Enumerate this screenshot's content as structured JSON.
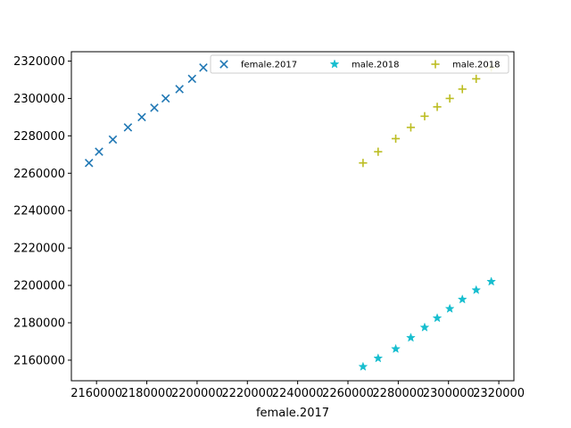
{
  "chart_data": {
    "type": "scatter",
    "title": "",
    "xlabel": "female.2017",
    "ylabel": "",
    "xlim": [
      2150000,
      2326000
    ],
    "ylim": [
      2149000,
      2325000
    ],
    "xticks": [
      2160000,
      2180000,
      2200000,
      2220000,
      2240000,
      2260000,
      2280000,
      2300000,
      2320000
    ],
    "yticks": [
      2160000,
      2180000,
      2200000,
      2220000,
      2240000,
      2260000,
      2280000,
      2300000,
      2320000
    ],
    "grid": false,
    "legend_position": "top-right",
    "series": [
      {
        "name": "female.2017",
        "marker": "x",
        "color": "#1f77b4",
        "points": [
          [
            2157000,
            2265500
          ],
          [
            2161000,
            2271500
          ],
          [
            2166500,
            2278000
          ],
          [
            2172500,
            2284500
          ],
          [
            2178000,
            2290000
          ],
          [
            2183000,
            2295000
          ],
          [
            2187500,
            2300000
          ],
          [
            2193000,
            2305000
          ],
          [
            2198000,
            2310500
          ],
          [
            2202500,
            2316500
          ]
        ]
      },
      {
        "name": "male.2018",
        "marker": "star",
        "color": "#17becf",
        "points": [
          [
            2266000,
            2156500
          ],
          [
            2272000,
            2161000
          ],
          [
            2279000,
            2166000
          ],
          [
            2285000,
            2172000
          ],
          [
            2290500,
            2177500
          ],
          [
            2295500,
            2182500
          ],
          [
            2300500,
            2187500
          ],
          [
            2305500,
            2192500
          ],
          [
            2311000,
            2197500
          ],
          [
            2317000,
            2202000
          ]
        ]
      },
      {
        "name": "male.2018",
        "marker": "plus",
        "color": "#bcbd22",
        "points": [
          [
            2266000,
            2265500
          ],
          [
            2272000,
            2271500
          ],
          [
            2279000,
            2278500
          ],
          [
            2285000,
            2284500
          ],
          [
            2290500,
            2290500
          ],
          [
            2295500,
            2295500
          ],
          [
            2300500,
            2300000
          ],
          [
            2305500,
            2305000
          ],
          [
            2311000,
            2310500
          ],
          [
            2317000,
            2316500
          ]
        ]
      }
    ]
  }
}
